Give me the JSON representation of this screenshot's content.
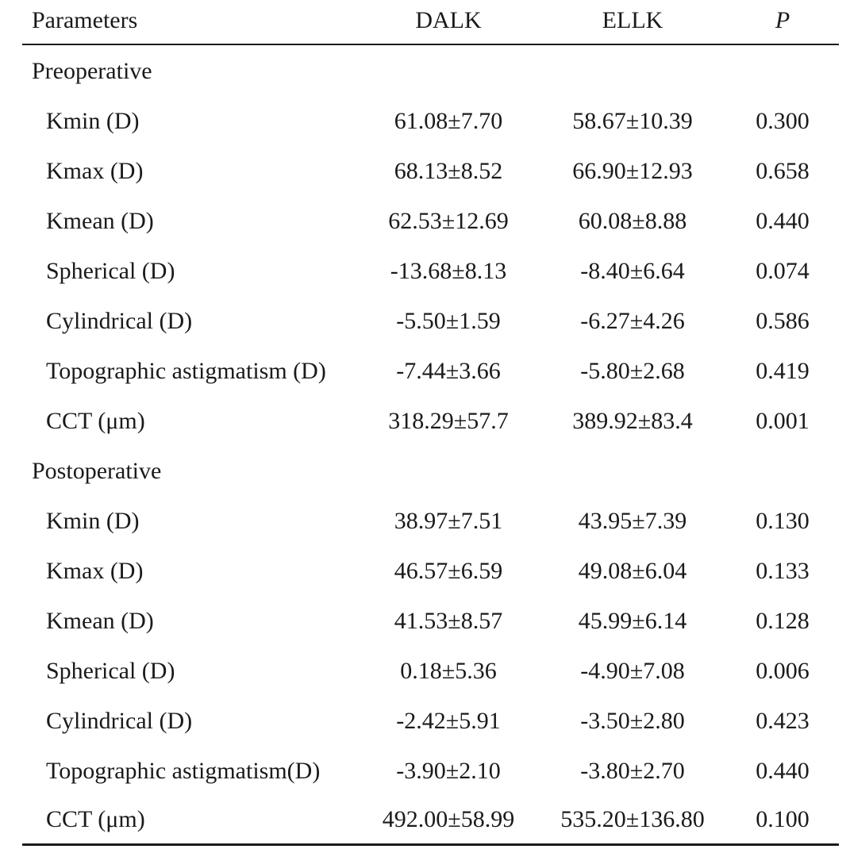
{
  "table": {
    "headers": {
      "parameters": "Parameters",
      "dalk": "DALK",
      "ellk": "ELLK",
      "p": "P"
    },
    "sections": [
      {
        "label": "Preoperative",
        "rows": [
          {
            "param": "Kmin (D)",
            "dalk": "61.08±7.70",
            "ellk": "58.67±10.39",
            "p": "0.300"
          },
          {
            "param": "Kmax (D)",
            "dalk": "68.13±8.52",
            "ellk": "66.90±12.93",
            "p": "0.658"
          },
          {
            "param": "Kmean (D)",
            "dalk": "62.53±12.69",
            "ellk": "60.08±8.88",
            "p": "0.440"
          },
          {
            "param": "Spherical (D)",
            "dalk": "-13.68±8.13",
            "ellk": "-8.40±6.64",
            "p": "0.074"
          },
          {
            "param": "Cylindrical (D)",
            "dalk": "-5.50±1.59",
            "ellk": "-6.27±4.26",
            "p": "0.586"
          },
          {
            "param": "Topographic astigmatism (D)",
            "dalk": "-7.44±3.66",
            "ellk": "-5.80±2.68",
            "p": "0.419"
          },
          {
            "param": "CCT (μm)",
            "dalk": "318.29±57.7",
            "ellk": "389.92±83.4",
            "p": "0.001"
          }
        ]
      },
      {
        "label": "Postoperative",
        "rows": [
          {
            "param": "Kmin (D)",
            "dalk": "38.97±7.51",
            "ellk": "43.95±7.39",
            "p": "0.130"
          },
          {
            "param": "Kmax (D)",
            "dalk": "46.57±6.59",
            "ellk": "49.08±6.04",
            "p": "0.133"
          },
          {
            "param": "Kmean (D)",
            "dalk": "41.53±8.57",
            "ellk": "45.99±6.14",
            "p": "0.128"
          },
          {
            "param": "Spherical (D)",
            "dalk": "0.18±5.36",
            "ellk": "-4.90±7.08",
            "p": "0.006"
          },
          {
            "param": "Cylindrical (D)",
            "dalk": "-2.42±5.91",
            "ellk": "-3.50±2.80",
            "p": "0.423"
          },
          {
            "param": "Topographic astigmatism(D)",
            "dalk": "-3.90±2.10",
            "ellk": "-3.80±2.70",
            "p": "0.440"
          },
          {
            "param": "CCT (μm)",
            "dalk": "492.00±58.99",
            "ellk": "535.20±136.80",
            "p": "0.100"
          }
        ]
      }
    ]
  }
}
